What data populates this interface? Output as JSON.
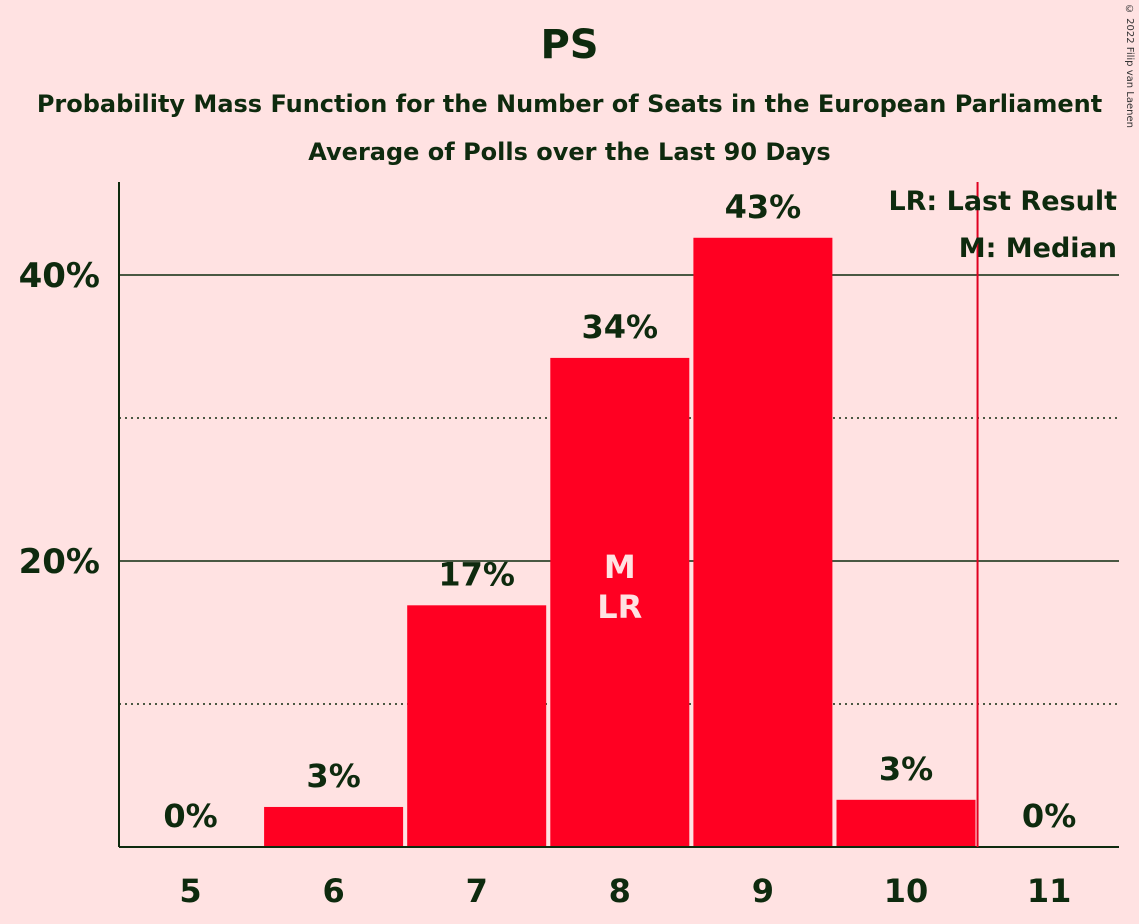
{
  "chart_data": {
    "type": "bar",
    "title": "PS",
    "subtitle": "Probability Mass Function for the Number of Seats in the European Parliament",
    "subtitle2": "Average of Polls over the Last 90 Days",
    "categories": [
      "5",
      "6",
      "7",
      "8",
      "9",
      "10",
      "11"
    ],
    "values": [
      0,
      2.8,
      16.9,
      34.2,
      42.6,
      3.3,
      0
    ],
    "data_labels": [
      "0%",
      "3%",
      "17%",
      "34%",
      "43%",
      "3%",
      "0%"
    ],
    "ylim": [
      0,
      46.5
    ],
    "y_ticks": [
      20,
      40
    ],
    "y_tick_labels": [
      "20%",
      "40%"
    ],
    "minor_gridlines": [
      10,
      30
    ],
    "last_result_seats": "10.5",
    "median_marker": {
      "category": "8",
      "labels": [
        "M",
        "LR"
      ]
    },
    "legend": {
      "lr": "LR: Last Result",
      "m": "M: Median",
      "position": "top-right"
    },
    "colors": {
      "bar": "#FF0022",
      "background": "#FFE2E2",
      "text": "#0E2A0E",
      "lr_line": "#E00020",
      "marker_text": "#FFE2E2"
    }
  },
  "copyright": "© 2022 Filip van Laenen"
}
